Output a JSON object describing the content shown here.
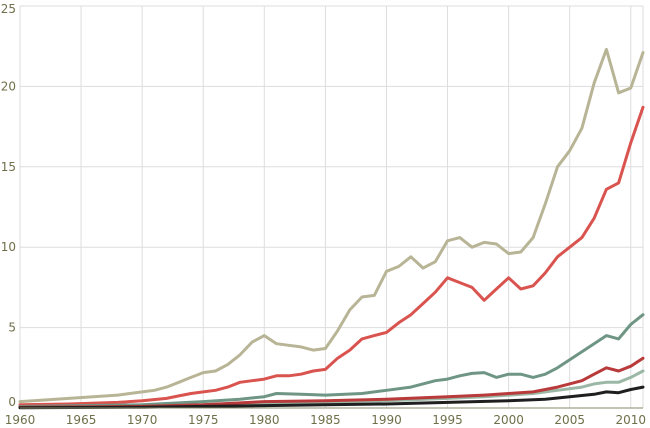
{
  "chart_data": {
    "type": "line",
    "title": "",
    "xlabel": "",
    "ylabel": "",
    "xlim": [
      1960,
      2011
    ],
    "ylim": [
      0,
      25
    ],
    "grid": true,
    "x_ticks": [
      1960,
      1965,
      1970,
      1975,
      1980,
      1985,
      1990,
      1995,
      2000,
      2005,
      2010
    ],
    "y_ticks": [
      0,
      5,
      10,
      15,
      20,
      25
    ],
    "series": [
      {
        "color": "#b8b496",
        "points": [
          [
            1960,
            0.4
          ],
          [
            1962,
            0.5
          ],
          [
            1964,
            0.6
          ],
          [
            1966,
            0.7
          ],
          [
            1968,
            0.8
          ],
          [
            1970,
            1.0
          ],
          [
            1971,
            1.1
          ],
          [
            1972,
            1.3
          ],
          [
            1973,
            1.6
          ],
          [
            1974,
            1.9
          ],
          [
            1975,
            2.2
          ],
          [
            1976,
            2.3
          ],
          [
            1977,
            2.7
          ],
          [
            1978,
            3.3
          ],
          [
            1979,
            4.1
          ],
          [
            1980,
            4.5
          ],
          [
            1981,
            4.0
          ],
          [
            1982,
            3.9
          ],
          [
            1983,
            3.8
          ],
          [
            1984,
            3.6
          ],
          [
            1985,
            3.7
          ],
          [
            1986,
            4.8
          ],
          [
            1987,
            6.1
          ],
          [
            1988,
            6.9
          ],
          [
            1989,
            7.0
          ],
          [
            1990,
            8.5
          ],
          [
            1991,
            8.8
          ],
          [
            1992,
            9.4
          ],
          [
            1993,
            8.7
          ],
          [
            1994,
            9.1
          ],
          [
            1995,
            10.4
          ],
          [
            1996,
            10.6
          ],
          [
            1997,
            10.0
          ],
          [
            1998,
            10.3
          ],
          [
            1999,
            10.2
          ],
          [
            2000,
            9.6
          ],
          [
            2001,
            9.7
          ],
          [
            2002,
            10.6
          ],
          [
            2003,
            12.7
          ],
          [
            2004,
            15.0
          ],
          [
            2005,
            16.0
          ],
          [
            2006,
            17.4
          ],
          [
            2007,
            20.2
          ],
          [
            2008,
            22.3
          ],
          [
            2009,
            19.6
          ],
          [
            2010,
            19.9
          ],
          [
            2011,
            22.1
          ]
        ]
      },
      {
        "color": "#d9534f",
        "points": [
          [
            1960,
            0.2
          ],
          [
            1964,
            0.25
          ],
          [
            1968,
            0.35
          ],
          [
            1970,
            0.45
          ],
          [
            1972,
            0.6
          ],
          [
            1973,
            0.75
          ],
          [
            1974,
            0.9
          ],
          [
            1975,
            1.0
          ],
          [
            1976,
            1.1
          ],
          [
            1977,
            1.3
          ],
          [
            1978,
            1.6
          ],
          [
            1979,
            1.7
          ],
          [
            1980,
            1.8
          ],
          [
            1981,
            2.0
          ],
          [
            1982,
            2.0
          ],
          [
            1983,
            2.1
          ],
          [
            1984,
            2.3
          ],
          [
            1985,
            2.4
          ],
          [
            1986,
            3.1
          ],
          [
            1987,
            3.6
          ],
          [
            1988,
            4.3
          ],
          [
            1989,
            4.5
          ],
          [
            1990,
            4.7
          ],
          [
            1991,
            5.3
          ],
          [
            1992,
            5.8
          ],
          [
            1993,
            6.5
          ],
          [
            1994,
            7.2
          ],
          [
            1995,
            8.1
          ],
          [
            1996,
            7.8
          ],
          [
            1997,
            7.5
          ],
          [
            1998,
            6.7
          ],
          [
            1999,
            7.4
          ],
          [
            2000,
            8.1
          ],
          [
            2001,
            7.4
          ],
          [
            2002,
            7.6
          ],
          [
            2003,
            8.4
          ],
          [
            2004,
            9.4
          ],
          [
            2005,
            10.0
          ],
          [
            2006,
            10.6
          ],
          [
            2007,
            11.8
          ],
          [
            2008,
            13.6
          ],
          [
            2009,
            14.0
          ],
          [
            2010,
            16.5
          ],
          [
            2011,
            18.7
          ]
        ]
      },
      {
        "color": "#6f9585",
        "points": [
          [
            1960,
            0.1
          ],
          [
            1965,
            0.15
          ],
          [
            1970,
            0.2
          ],
          [
            1975,
            0.4
          ],
          [
            1978,
            0.55
          ],
          [
            1980,
            0.7
          ],
          [
            1981,
            0.9
          ],
          [
            1983,
            0.85
          ],
          [
            1985,
            0.8
          ],
          [
            1988,
            0.9
          ],
          [
            1990,
            1.1
          ],
          [
            1992,
            1.3
          ],
          [
            1994,
            1.7
          ],
          [
            1995,
            1.8
          ],
          [
            1996,
            2.0
          ],
          [
            1997,
            2.15
          ],
          [
            1998,
            2.2
          ],
          [
            1999,
            1.9
          ],
          [
            2000,
            2.1
          ],
          [
            2001,
            2.1
          ],
          [
            2002,
            1.9
          ],
          [
            2003,
            2.1
          ],
          [
            2004,
            2.5
          ],
          [
            2005,
            3.0
          ],
          [
            2006,
            3.5
          ],
          [
            2007,
            4.0
          ],
          [
            2008,
            4.5
          ],
          [
            2009,
            4.3
          ],
          [
            2010,
            5.2
          ],
          [
            2011,
            5.8
          ]
        ]
      },
      {
        "color": "#9bb8a6",
        "points": [
          [
            1960,
            0.05
          ],
          [
            1970,
            0.1
          ],
          [
            1975,
            0.2
          ],
          [
            1980,
            0.3
          ],
          [
            1985,
            0.35
          ],
          [
            1990,
            0.45
          ],
          [
            1995,
            0.6
          ],
          [
            1998,
            0.7
          ],
          [
            2000,
            0.8
          ],
          [
            2002,
            0.9
          ],
          [
            2004,
            1.1
          ],
          [
            2006,
            1.3
          ],
          [
            2007,
            1.5
          ],
          [
            2008,
            1.6
          ],
          [
            2009,
            1.6
          ],
          [
            2010,
            1.9
          ],
          [
            2011,
            2.3
          ]
        ]
      },
      {
        "color": "#b83a3a",
        "points": [
          [
            1960,
            0.05
          ],
          [
            1970,
            0.1
          ],
          [
            1975,
            0.2
          ],
          [
            1980,
            0.4
          ],
          [
            1985,
            0.45
          ],
          [
            1990,
            0.55
          ],
          [
            1995,
            0.7
          ],
          [
            1998,
            0.8
          ],
          [
            2000,
            0.9
          ],
          [
            2002,
            1.0
          ],
          [
            2004,
            1.3
          ],
          [
            2006,
            1.7
          ],
          [
            2007,
            2.1
          ],
          [
            2008,
            2.5
          ],
          [
            2009,
            2.3
          ],
          [
            2010,
            2.6
          ],
          [
            2011,
            3.1
          ]
        ]
      },
      {
        "color": "#1f1f1f",
        "points": [
          [
            1960,
            0.02
          ],
          [
            1970,
            0.05
          ],
          [
            1975,
            0.1
          ],
          [
            1980,
            0.15
          ],
          [
            1985,
            0.2
          ],
          [
            1990,
            0.25
          ],
          [
            1995,
            0.35
          ],
          [
            2000,
            0.45
          ],
          [
            2003,
            0.55
          ],
          [
            2005,
            0.7
          ],
          [
            2007,
            0.85
          ],
          [
            2008,
            1.0
          ],
          [
            2009,
            0.95
          ],
          [
            2010,
            1.15
          ],
          [
            2011,
            1.3
          ]
        ]
      }
    ]
  }
}
